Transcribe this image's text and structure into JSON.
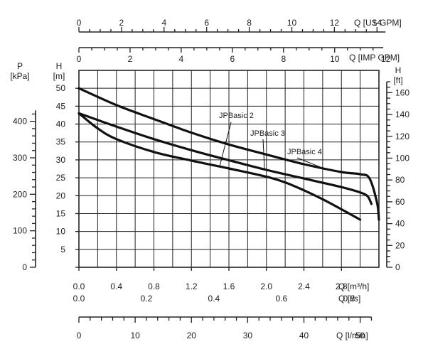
{
  "chart_data": {
    "type": "line",
    "title": "",
    "axes": {
      "x_primary": {
        "label": "Q [m³/h]",
        "ticks": [
          "0.0",
          "0.4",
          "0.8",
          "1.2",
          "1.6",
          "2.0",
          "2.4",
          "2.8"
        ],
        "range": [
          0,
          3.2
        ]
      },
      "x_ls": {
        "label": "Q [l/s]",
        "ticks": [
          "0.0",
          "0.2",
          "0.4",
          "0.6",
          "0.8"
        ],
        "values": [
          0,
          0.2,
          0.4,
          0.6,
          0.8
        ]
      },
      "x_lmin": {
        "label": "Q [l/min]",
        "ticks": [
          "0",
          "10",
          "20",
          "30",
          "40",
          "50"
        ],
        "values": [
          0,
          10,
          20,
          30,
          40,
          50
        ]
      },
      "x_usgpm": {
        "label": "Q [US GPM]",
        "ticks": [
          "0",
          "2",
          "4",
          "6",
          "8",
          "10",
          "12",
          "14"
        ],
        "values": [
          0,
          2,
          4,
          6,
          8,
          10,
          12,
          14
        ]
      },
      "x_impgpm": {
        "label": "Q [IMP GPM]",
        "ticks": [
          "0",
          "2",
          "4",
          "6",
          "8",
          "10",
          "12"
        ],
        "values": [
          0,
          2,
          4,
          6,
          8,
          10,
          12
        ]
      },
      "y_primary": {
        "label_top": "H",
        "label_unit": "[m]",
        "ticks": [
          "5",
          "10",
          "15",
          "20",
          "25",
          "30",
          "35",
          "40",
          "45",
          "50"
        ],
        "range": [
          0,
          55
        ]
      },
      "y_kpa": {
        "label_top": "P",
        "label_unit": "[kPa]",
        "ticks": [
          "0",
          "100",
          "200",
          "300",
          "400"
        ],
        "values": [
          0,
          100,
          200,
          300,
          400
        ]
      },
      "y_ft": {
        "label_top": "H",
        "label_unit": "[ft]",
        "ticks": [
          "0",
          "20",
          "40",
          "60",
          "80",
          "100",
          "120",
          "140",
          "160"
        ],
        "values": [
          0,
          20,
          40,
          60,
          80,
          100,
          120,
          140,
          160
        ]
      }
    },
    "grid": true,
    "series": [
      {
        "name": "JPBasic 2",
        "x": [
          0,
          0.2,
          0.4,
          0.8,
          1.2,
          1.6,
          2.0,
          2.2,
          2.4,
          2.6,
          2.8,
          3.0
        ],
        "y": [
          43,
          38.8,
          35.8,
          32.2,
          29.8,
          27.6,
          25.3,
          23.7,
          21.5,
          19.0,
          16.2,
          13.3
        ]
      },
      {
        "name": "JPBasic 3",
        "x": [
          0,
          0.4,
          0.8,
          1.2,
          1.6,
          2.0,
          2.4,
          2.8,
          3.0,
          3.08,
          3.12
        ],
        "y": [
          43,
          39.3,
          35.8,
          32.7,
          29.9,
          27.2,
          24.8,
          22.4,
          20.9,
          19.8,
          17.7
        ]
      },
      {
        "name": "JPBasic 4",
        "x": [
          0,
          0.4,
          0.8,
          1.2,
          1.6,
          2.0,
          2.4,
          2.8,
          3.0,
          3.1,
          3.18,
          3.2
        ],
        "y": [
          50,
          45.3,
          41.4,
          37.6,
          34.3,
          31.5,
          28.8,
          26.6,
          26.0,
          24.8,
          18.0,
          13.3
        ]
      }
    ],
    "annotations": [
      {
        "text": "JPBasic 2",
        "series": "JPBasic 2"
      },
      {
        "text": "JPBasic 3",
        "series": "JPBasic 3"
      },
      {
        "text": "JPBasic 4",
        "series": "JPBasic 4"
      }
    ]
  }
}
